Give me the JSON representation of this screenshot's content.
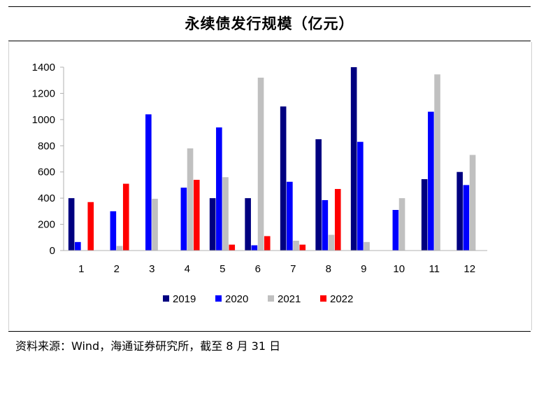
{
  "title": "永续债发行规模（亿元）",
  "source": "资料来源：Wind，海通证券研究所，截至 8 月 31 日",
  "chart_data": {
    "type": "bar",
    "title": "永续债发行规模（亿元）",
    "xlabel": "",
    "ylabel": "",
    "ylim": [
      0,
      1400
    ],
    "yticks": [
      0,
      200,
      400,
      600,
      800,
      1000,
      1200,
      1400
    ],
    "grid": false,
    "legend_position": "bottom",
    "categories": [
      "1",
      "2",
      "3",
      "4",
      "5",
      "6",
      "7",
      "8",
      "9",
      "10",
      "11",
      "12"
    ],
    "series": [
      {
        "name": "2019",
        "color": "#000080",
        "values": [
          400,
          0,
          0,
          0,
          400,
          400,
          1100,
          850,
          1400,
          0,
          545,
          600
        ]
      },
      {
        "name": "2020",
        "color": "#0000ff",
        "values": [
          65,
          300,
          1040,
          480,
          940,
          40,
          525,
          385,
          830,
          310,
          1060,
          500
        ]
      },
      {
        "name": "2021",
        "color": "#c0c0c0",
        "values": [
          0,
          35,
          395,
          780,
          560,
          1320,
          75,
          120,
          65,
          400,
          1345,
          730
        ]
      },
      {
        "name": "2022",
        "color": "#ff0000",
        "values": [
          370,
          510,
          0,
          540,
          45,
          110,
          45,
          470,
          0,
          0,
          0,
          0
        ]
      }
    ]
  }
}
